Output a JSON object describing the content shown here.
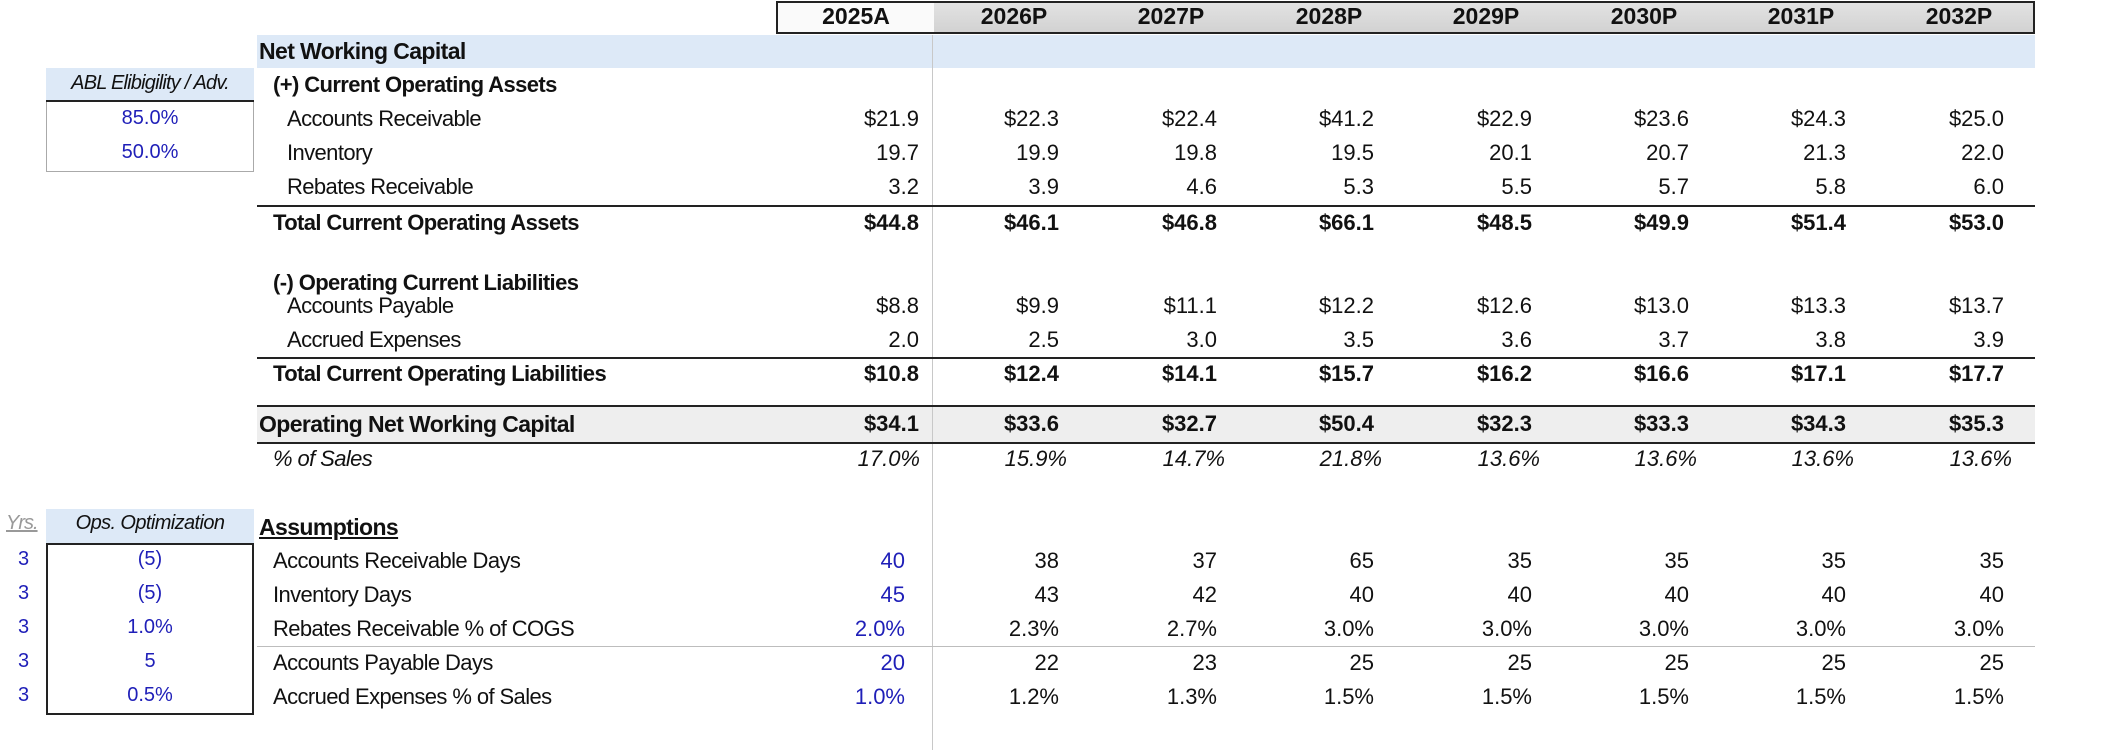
{
  "years": [
    "2025A",
    "2026P",
    "2027P",
    "2028P",
    "2029P",
    "2030P",
    "2031P",
    "2032P"
  ],
  "section_title": "Net Working Capital",
  "abl": {
    "header": "ABL Elibigility / Adv.",
    "values": [
      "85.0%",
      "50.0%"
    ]
  },
  "assets_header": "(+) Current Operating Assets",
  "assets": [
    {
      "label": "Accounts Receivable",
      "values": [
        "$21.9",
        "$22.3",
        "$22.4",
        "$41.2",
        "$22.9",
        "$23.6",
        "$24.3",
        "$25.0"
      ]
    },
    {
      "label": "Inventory",
      "values": [
        "19.7",
        "19.9",
        "19.8",
        "19.5",
        "20.1",
        "20.7",
        "21.3",
        "22.0"
      ]
    },
    {
      "label": "Rebates Receivable",
      "values": [
        "3.2",
        "3.9",
        "4.6",
        "5.3",
        "5.5",
        "5.7",
        "5.8",
        "6.0"
      ]
    }
  ],
  "total_assets": {
    "label": "Total Current Operating Assets",
    "values": [
      "$44.8",
      "$46.1",
      "$46.8",
      "$66.1",
      "$48.5",
      "$49.9",
      "$51.4",
      "$53.0"
    ]
  },
  "liab_header": "(-) Operating Current Liabilities",
  "liabilities": [
    {
      "label": "Accounts Payable",
      "values": [
        "$8.8",
        "$9.9",
        "$11.1",
        "$12.2",
        "$12.6",
        "$13.0",
        "$13.3",
        "$13.7"
      ]
    },
    {
      "label": "Accrued Expenses",
      "values": [
        "2.0",
        "2.5",
        "3.0",
        "3.5",
        "3.6",
        "3.7",
        "3.8",
        "3.9"
      ]
    }
  ],
  "total_liab": {
    "label": "Total Current Operating Liabilities",
    "values": [
      "$10.8",
      "$12.4",
      "$14.1",
      "$15.7",
      "$16.2",
      "$16.6",
      "$17.1",
      "$17.7"
    ]
  },
  "onwc": {
    "label": "Operating Net Working Capital",
    "values": [
      "$34.1",
      "$33.6",
      "$32.7",
      "$50.4",
      "$32.3",
      "$33.3",
      "$34.3",
      "$35.3"
    ]
  },
  "pct_sales": {
    "label": "% of Sales",
    "values": [
      "17.0%",
      "15.9%",
      "14.7%",
      "21.8%",
      "13.6%",
      "13.6%",
      "13.6%",
      "13.6%"
    ]
  },
  "ops": {
    "yrs_header": "Yrs.",
    "header": "Ops. Optimization"
  },
  "assumptions_title": "Assumptions",
  "assumptions": [
    {
      "yrs": "3",
      "opt": "(5)",
      "label": "Accounts Receivable Days",
      "values": [
        "40",
        "38",
        "37",
        "65",
        "35",
        "35",
        "35",
        "35"
      ]
    },
    {
      "yrs": "3",
      "opt": "(5)",
      "label": "Inventory Days",
      "values": [
        "45",
        "43",
        "42",
        "40",
        "40",
        "40",
        "40",
        "40"
      ]
    },
    {
      "yrs": "3",
      "opt": "1.0%",
      "label": "Rebates Receivable % of COGS",
      "values": [
        "2.0%",
        "2.3%",
        "2.7%",
        "3.0%",
        "3.0%",
        "3.0%",
        "3.0%",
        "3.0%"
      ]
    },
    {
      "yrs": "3",
      "opt": "5",
      "label": "Accounts Payable Days",
      "values": [
        "20",
        "22",
        "23",
        "25",
        "25",
        "25",
        "25",
        "25"
      ]
    },
    {
      "yrs": "3",
      "opt": "0.5%",
      "label": "Accrued Expenses % of Sales",
      "values": [
        "1.0%",
        "1.2%",
        "1.3%",
        "1.5%",
        "1.5%",
        "1.5%",
        "1.5%",
        "1.5%"
      ]
    }
  ]
}
